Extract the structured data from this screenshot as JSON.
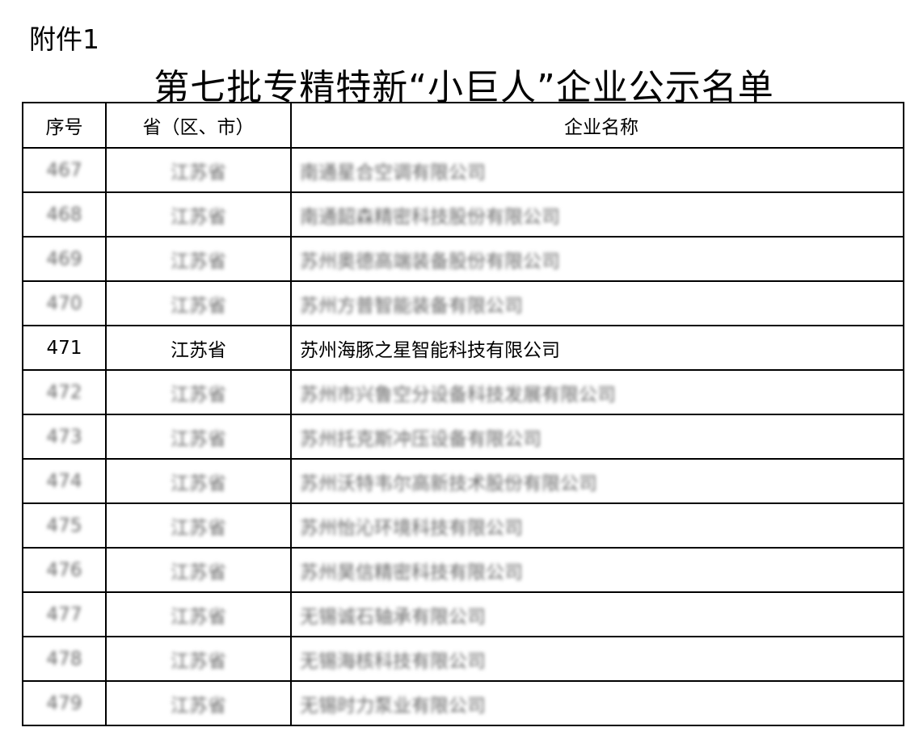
{
  "attachment_label": "附件1",
  "title": "第七批专精特新“小巨人”企业公示名单",
  "table": {
    "headers": [
      "序号",
      "省（区、市）",
      "企业名称"
    ],
    "rows": [
      {
        "no": "467",
        "province": "江苏省",
        "company": "南通星合空调有限公司",
        "blurred": true
      },
      {
        "no": "468",
        "province": "江苏省",
        "company": "南通韶森精密科技股份有限公司",
        "blurred": true
      },
      {
        "no": "469",
        "province": "江苏省",
        "company": "苏州奥德高端装备股份有限公司",
        "blurred": true
      },
      {
        "no": "470",
        "province": "江苏省",
        "company": "苏州方普智能装备有限公司",
        "blurred": true
      },
      {
        "no": "471",
        "province": "江苏省",
        "company": "苏州海豚之星智能科技有限公司",
        "blurred": false
      },
      {
        "no": "472",
        "province": "江苏省",
        "company": "苏州市兴鲁空分设备科技发展有限公司",
        "blurred": true
      },
      {
        "no": "473",
        "province": "江苏省",
        "company": "苏州托克斯冲压设备有限公司",
        "blurred": true
      },
      {
        "no": "474",
        "province": "江苏省",
        "company": "苏州沃特韦尔高新技术股份有限公司",
        "blurred": true
      },
      {
        "no": "475",
        "province": "江苏省",
        "company": "苏州怡沁环境科技有限公司",
        "blurred": true
      },
      {
        "no": "476",
        "province": "江苏省",
        "company": "苏州昊信精密科技有限公司",
        "blurred": true
      },
      {
        "no": "477",
        "province": "江苏省",
        "company": "无锡诚石轴承有限公司",
        "blurred": true
      },
      {
        "no": "478",
        "province": "江苏省",
        "company": "无锡海核科技有限公司",
        "blurred": true
      },
      {
        "no": "479",
        "province": "江苏省",
        "company": "无锡时力泵业有限公司",
        "blurred": true
      }
    ]
  }
}
